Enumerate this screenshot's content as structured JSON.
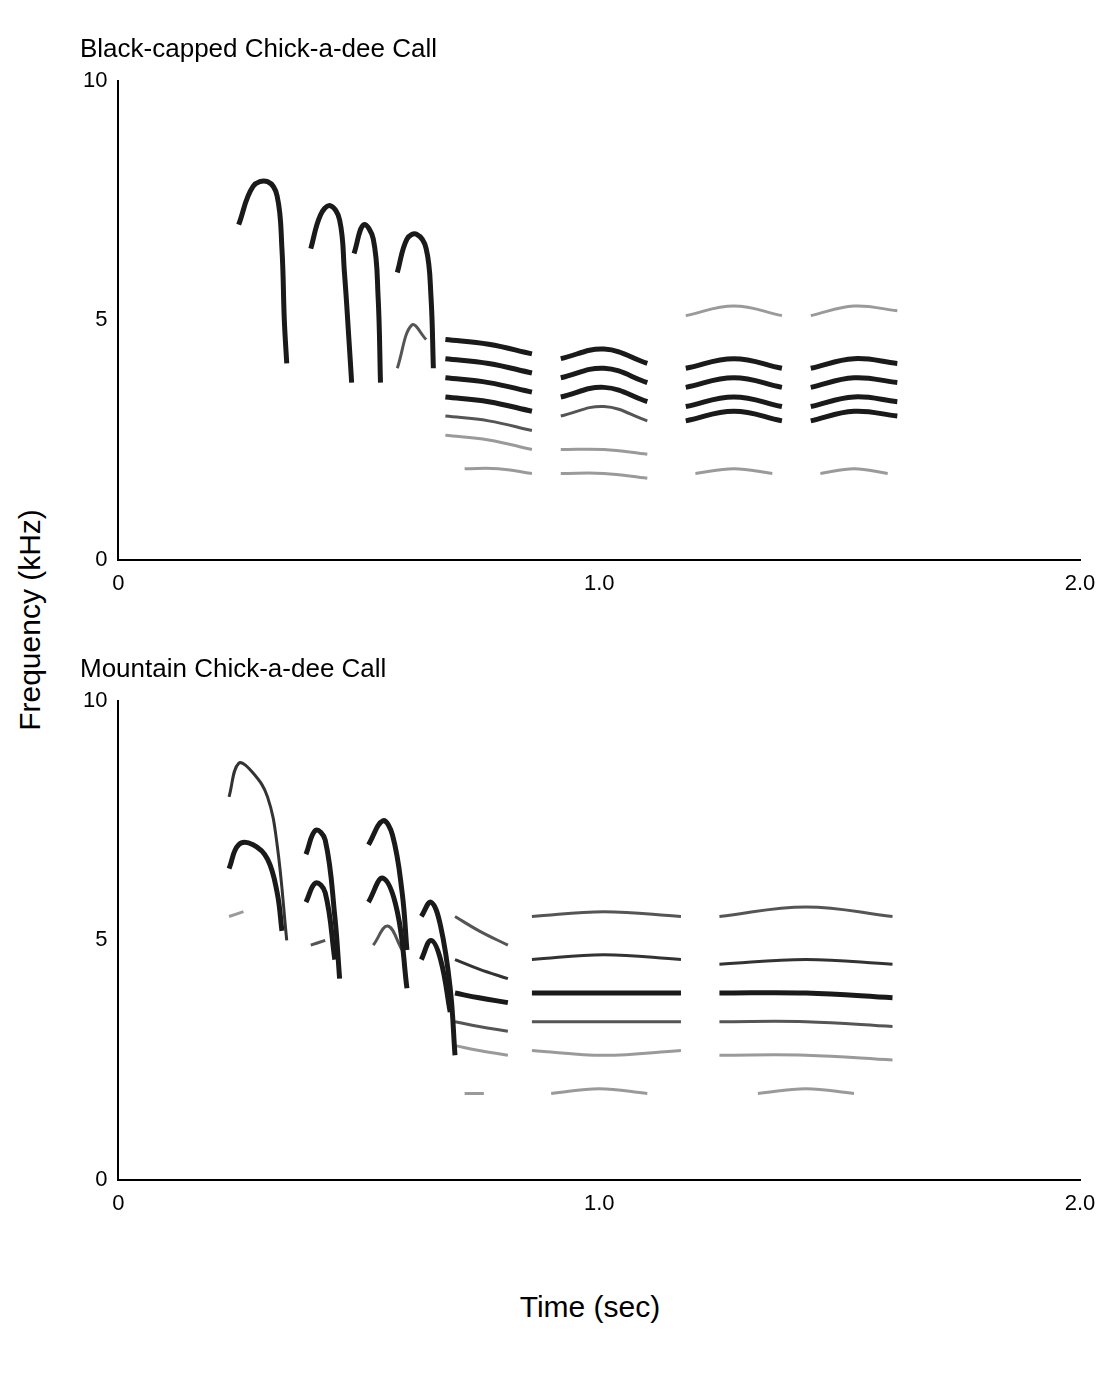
{
  "axis_labels": {
    "x": "Time (sec)",
    "y": "Frequency (kHz)"
  },
  "chart_data": [
    {
      "type": "line",
      "title": "Black-capped Chick-a-dee Call",
      "xlim": [
        0,
        2
      ],
      "xticks": [
        0,
        {
          "value": 1,
          "label": "1.0"
        },
        {
          "value": 2,
          "label": "2.0"
        }
      ],
      "ylim": [
        0,
        10
      ],
      "yticks": [
        0,
        5,
        10
      ],
      "grid": false,
      "series": [
        {
          "color": "#1a1a1a",
          "x": [
            0.25,
            0.28,
            0.31,
            0.33,
            0.34,
            0.345,
            0.35
          ],
          "values": [
            7.0,
            7.8,
            7.9,
            7.6,
            6.5,
            5.0,
            4.1
          ]
        },
        {
          "color": "#1a1a1a",
          "x": [
            0.4,
            0.42,
            0.44,
            0.46,
            0.47,
            0.48,
            0.485
          ],
          "values": [
            6.5,
            7.2,
            7.4,
            7.1,
            6.0,
            4.5,
            3.7
          ]
        },
        {
          "color": "#1a1a1a",
          "x": [
            0.49,
            0.51,
            0.53,
            0.54,
            0.545
          ],
          "values": [
            6.4,
            7.0,
            6.7,
            5.5,
            3.7
          ]
        },
        {
          "color": "#1a1a1a",
          "x": [
            0.58,
            0.6,
            0.62,
            0.64,
            0.65,
            0.655
          ],
          "values": [
            6.0,
            6.7,
            6.8,
            6.5,
            5.5,
            4.0
          ]
        },
        {
          "color": "#555555",
          "x": [
            0.58,
            0.61,
            0.64
          ],
          "values": [
            4.0,
            4.9,
            4.6
          ]
        },
        {
          "color": "#1a1a1a",
          "x": [
            0.68,
            0.77,
            0.86
          ],
          "values": [
            4.6,
            4.5,
            4.3
          ]
        },
        {
          "color": "#1a1a1a",
          "x": [
            0.68,
            0.77,
            0.86
          ],
          "values": [
            4.2,
            4.1,
            3.9
          ]
        },
        {
          "color": "#1a1a1a",
          "x": [
            0.68,
            0.77,
            0.86
          ],
          "values": [
            3.8,
            3.7,
            3.5
          ]
        },
        {
          "color": "#1a1a1a",
          "x": [
            0.68,
            0.77,
            0.86
          ],
          "values": [
            3.4,
            3.3,
            3.1
          ]
        },
        {
          "color": "#555555",
          "x": [
            0.68,
            0.77,
            0.86
          ],
          "values": [
            3.0,
            2.9,
            2.7
          ]
        },
        {
          "color": "#9a9a9a",
          "x": [
            0.68,
            0.77,
            0.86
          ],
          "values": [
            2.6,
            2.5,
            2.3
          ]
        },
        {
          "color": "#9a9a9a",
          "x": [
            0.72,
            0.79,
            0.86
          ],
          "values": [
            1.9,
            1.9,
            1.8
          ]
        },
        {
          "color": "#1a1a1a",
          "x": [
            0.92,
            1.01,
            1.1
          ],
          "values": [
            4.2,
            4.4,
            4.1
          ]
        },
        {
          "color": "#1a1a1a",
          "x": [
            0.92,
            1.01,
            1.1
          ],
          "values": [
            3.8,
            4.0,
            3.7
          ]
        },
        {
          "color": "#1a1a1a",
          "x": [
            0.92,
            1.01,
            1.1
          ],
          "values": [
            3.4,
            3.6,
            3.3
          ]
        },
        {
          "color": "#555555",
          "x": [
            0.92,
            1.01,
            1.1
          ],
          "values": [
            3.0,
            3.2,
            2.9
          ]
        },
        {
          "color": "#9a9a9a",
          "x": [
            0.92,
            1.01,
            1.1
          ],
          "values": [
            2.3,
            2.3,
            2.2
          ]
        },
        {
          "color": "#9a9a9a",
          "x": [
            0.92,
            1.01,
            1.1
          ],
          "values": [
            1.8,
            1.8,
            1.7
          ]
        },
        {
          "color": "#1a1a1a",
          "x": [
            1.18,
            1.28,
            1.38
          ],
          "values": [
            4.0,
            4.2,
            4.0
          ]
        },
        {
          "color": "#1a1a1a",
          "x": [
            1.18,
            1.28,
            1.38
          ],
          "values": [
            3.6,
            3.8,
            3.6
          ]
        },
        {
          "color": "#1a1a1a",
          "x": [
            1.18,
            1.28,
            1.38
          ],
          "values": [
            3.2,
            3.4,
            3.2
          ]
        },
        {
          "color": "#1a1a1a",
          "x": [
            1.18,
            1.28,
            1.38
          ],
          "values": [
            2.9,
            3.1,
            2.9
          ]
        },
        {
          "color": "#9a9a9a",
          "x": [
            1.18,
            1.28,
            1.38
          ],
          "values": [
            5.1,
            5.3,
            5.1
          ]
        },
        {
          "color": "#9a9a9a",
          "x": [
            1.2,
            1.28,
            1.36
          ],
          "values": [
            1.8,
            1.9,
            1.8
          ]
        },
        {
          "color": "#1a1a1a",
          "x": [
            1.44,
            1.53,
            1.62
          ],
          "values": [
            4.0,
            4.2,
            4.1
          ]
        },
        {
          "color": "#1a1a1a",
          "x": [
            1.44,
            1.53,
            1.62
          ],
          "values": [
            3.6,
            3.8,
            3.7
          ]
        },
        {
          "color": "#1a1a1a",
          "x": [
            1.44,
            1.53,
            1.62
          ],
          "values": [
            3.2,
            3.4,
            3.3
          ]
        },
        {
          "color": "#1a1a1a",
          "x": [
            1.44,
            1.53,
            1.62
          ],
          "values": [
            2.9,
            3.1,
            3.0
          ]
        },
        {
          "color": "#9a9a9a",
          "x": [
            1.44,
            1.53,
            1.62
          ],
          "values": [
            5.1,
            5.3,
            5.2
          ]
        },
        {
          "color": "#9a9a9a",
          "x": [
            1.46,
            1.53,
            1.6
          ],
          "values": [
            1.8,
            1.9,
            1.8
          ]
        }
      ]
    },
    {
      "type": "line",
      "title": "Mountain Chick-a-dee Call",
      "xlim": [
        0,
        2
      ],
      "xticks": [
        0,
        {
          "value": 1,
          "label": "1.0"
        },
        {
          "value": 2,
          "label": "2.0"
        }
      ],
      "ylim": [
        0,
        10
      ],
      "yticks": [
        0,
        5,
        10
      ],
      "grid": false,
      "series": [
        {
          "color": "#1a1a1a",
          "x": [
            0.23,
            0.25,
            0.28,
            0.31,
            0.33,
            0.34
          ],
          "values": [
            6.5,
            7.0,
            7.0,
            6.7,
            6.0,
            5.2
          ]
        },
        {
          "color": "#333333",
          "x": [
            0.23,
            0.25,
            0.28,
            0.31,
            0.33,
            0.35
          ],
          "values": [
            8.0,
            8.7,
            8.5,
            8.0,
            7.0,
            5.0
          ]
        },
        {
          "color": "#9a9a9a",
          "x": [
            0.23,
            0.26
          ],
          "values": [
            5.5,
            5.6
          ]
        },
        {
          "color": "#1a1a1a",
          "x": [
            0.39,
            0.41,
            0.43,
            0.45,
            0.46
          ],
          "values": [
            6.8,
            7.3,
            7.1,
            5.5,
            4.2
          ]
        },
        {
          "color": "#1a1a1a",
          "x": [
            0.39,
            0.41,
            0.43,
            0.45
          ],
          "values": [
            5.8,
            6.2,
            6.0,
            4.6
          ]
        },
        {
          "color": "#555555",
          "x": [
            0.4,
            0.43
          ],
          "values": [
            4.9,
            5.0
          ]
        },
        {
          "color": "#1a1a1a",
          "x": [
            0.52,
            0.55,
            0.57,
            0.59,
            0.6
          ],
          "values": [
            7.0,
            7.5,
            7.2,
            6.0,
            4.8
          ]
        },
        {
          "color": "#1a1a1a",
          "x": [
            0.52,
            0.55,
            0.58,
            0.6
          ],
          "values": [
            5.8,
            6.3,
            5.6,
            4.0
          ]
        },
        {
          "color": "#555555",
          "x": [
            0.53,
            0.56,
            0.59
          ],
          "values": [
            4.9,
            5.3,
            4.8
          ]
        },
        {
          "color": "#1a1a1a",
          "x": [
            0.63,
            0.65,
            0.67,
            0.69,
            0.7
          ],
          "values": [
            5.5,
            5.8,
            5.3,
            4.0,
            2.6
          ]
        },
        {
          "color": "#1a1a1a",
          "x": [
            0.63,
            0.65,
            0.67,
            0.69
          ],
          "values": [
            4.6,
            5.0,
            4.6,
            3.5
          ]
        },
        {
          "color": "#555555",
          "x": [
            0.7,
            0.75,
            0.81
          ],
          "values": [
            5.5,
            5.2,
            4.9
          ]
        },
        {
          "color": "#333333",
          "x": [
            0.7,
            0.75,
            0.81
          ],
          "values": [
            4.6,
            4.4,
            4.2
          ]
        },
        {
          "color": "#1a1a1a",
          "x": [
            0.7,
            0.75,
            0.81
          ],
          "values": [
            3.9,
            3.8,
            3.7
          ]
        },
        {
          "color": "#555555",
          "x": [
            0.7,
            0.75,
            0.81
          ],
          "values": [
            3.3,
            3.2,
            3.1
          ]
        },
        {
          "color": "#9a9a9a",
          "x": [
            0.7,
            0.75,
            0.81
          ],
          "values": [
            2.8,
            2.7,
            2.6
          ]
        },
        {
          "color": "#9a9a9a",
          "x": [
            0.72,
            0.76
          ],
          "values": [
            1.8,
            1.8
          ]
        },
        {
          "color": "#555555",
          "x": [
            0.86,
            1.01,
            1.17
          ],
          "values": [
            5.5,
            5.6,
            5.5
          ]
        },
        {
          "color": "#333333",
          "x": [
            0.86,
            1.01,
            1.17
          ],
          "values": [
            4.6,
            4.7,
            4.6
          ]
        },
        {
          "color": "#1a1a1a",
          "x": [
            0.86,
            1.01,
            1.17
          ],
          "values": [
            3.9,
            3.9,
            3.9
          ]
        },
        {
          "color": "#555555",
          "x": [
            0.86,
            1.01,
            1.17
          ],
          "values": [
            3.3,
            3.3,
            3.3
          ]
        },
        {
          "color": "#9a9a9a",
          "x": [
            0.86,
            1.01,
            1.17
          ],
          "values": [
            2.7,
            2.6,
            2.7
          ]
        },
        {
          "color": "#9a9a9a",
          "x": [
            0.9,
            1.0,
            1.1
          ],
          "values": [
            1.8,
            1.9,
            1.8
          ]
        },
        {
          "color": "#555555",
          "x": [
            1.25,
            1.43,
            1.61
          ],
          "values": [
            5.5,
            5.7,
            5.5
          ]
        },
        {
          "color": "#333333",
          "x": [
            1.25,
            1.43,
            1.61
          ],
          "values": [
            4.5,
            4.6,
            4.5
          ]
        },
        {
          "color": "#1a1a1a",
          "x": [
            1.25,
            1.43,
            1.61
          ],
          "values": [
            3.9,
            3.9,
            3.8
          ]
        },
        {
          "color": "#555555",
          "x": [
            1.25,
            1.43,
            1.61
          ],
          "values": [
            3.3,
            3.3,
            3.2
          ]
        },
        {
          "color": "#9a9a9a",
          "x": [
            1.25,
            1.43,
            1.61
          ],
          "values": [
            2.6,
            2.6,
            2.5
          ]
        },
        {
          "color": "#9a9a9a",
          "x": [
            1.33,
            1.43,
            1.53
          ],
          "values": [
            1.8,
            1.9,
            1.8
          ]
        }
      ]
    }
  ]
}
